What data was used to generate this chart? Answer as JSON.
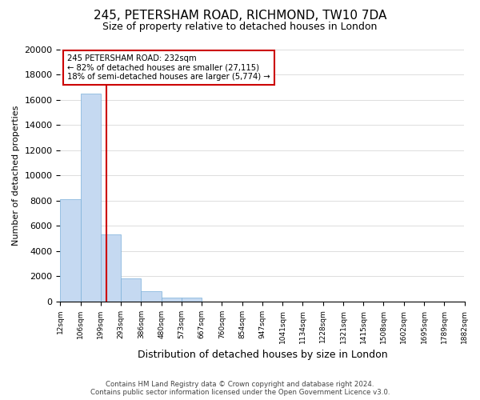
{
  "title": "245, PETERSHAM ROAD, RICHMOND, TW10 7DA",
  "subtitle": "Size of property relative to detached houses in London",
  "xlabel": "Distribution of detached houses by size in London",
  "ylabel": "Number of detached properties",
  "bar_values": [
    8100,
    16500,
    5300,
    1800,
    800,
    300,
    300,
    0,
    0,
    0,
    0,
    0,
    0,
    0,
    0,
    0,
    0,
    0,
    0,
    0
  ],
  "bar_labels": [
    "12sqm",
    "106sqm",
    "199sqm",
    "293sqm",
    "386sqm",
    "480sqm",
    "573sqm",
    "667sqm",
    "760sqm",
    "854sqm",
    "947sqm",
    "1041sqm",
    "1134sqm",
    "1228sqm",
    "1321sqm",
    "1415sqm",
    "1508sqm",
    "1602sqm",
    "1695sqm",
    "1789sqm",
    "1882sqm"
  ],
  "bar_color": "#c5d9f1",
  "bar_edge_color": "#7ab0d9",
  "vline_x": 2.27,
  "vline_color": "#cc0000",
  "annotation_box_color": "#ffffff",
  "annotation_border_color": "#cc0000",
  "annotation_text_line1": "245 PETERSHAM ROAD: 232sqm",
  "annotation_text_line2": "← 82% of detached houses are smaller (27,115)",
  "annotation_text_line3": "18% of semi-detached houses are larger (5,774) →",
  "ylim": [
    0,
    20000
  ],
  "yticks": [
    0,
    2000,
    4000,
    6000,
    8000,
    10000,
    12000,
    14000,
    16000,
    18000,
    20000
  ],
  "footer_line1": "Contains HM Land Registry data © Crown copyright and database right 2024.",
  "footer_line2": "Contains public sector information licensed under the Open Government Licence v3.0.",
  "background_color": "#ffffff",
  "grid_color": "#dddddd"
}
